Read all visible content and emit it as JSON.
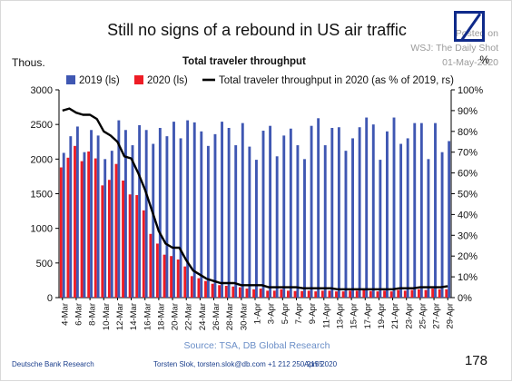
{
  "header": {
    "title": "Still no signs of a rebound in US air traffic",
    "watermark_lines": [
      "Posted on",
      "WSJ: The Daily Shot",
      "01-May-2020",
      "@SoberLook"
    ]
  },
  "footer": {
    "brand": "Deutsche Bank Research",
    "contact": "Torsten Slok, torsten.slok@db.com +1 212 250-2155",
    "date": "April 2020",
    "page": "178"
  },
  "colors": {
    "blue": "#3f57b2",
    "red": "#ee1c25",
    "line": "#000000",
    "source_text": "#6a8ec7"
  },
  "icons": {
    "logo": "deutsche-bank-logo-icon"
  },
  "chart_data": {
    "type": "bar",
    "title": "Total traveler throughput",
    "ylabel": "Thous.",
    "y2label": "%",
    "source": "Source:  TSA, DB Global Research",
    "ylim": [
      0,
      3000
    ],
    "y2lim": [
      0,
      100
    ],
    "yticks": [
      "0",
      "500",
      "1000",
      "1500",
      "2000",
      "2500",
      "3000"
    ],
    "y2ticks": [
      "0%",
      "10%",
      "20%",
      "30%",
      "40%",
      "50%",
      "60%",
      "70%",
      "80%",
      "90%",
      "100%"
    ],
    "legend_position": "top",
    "categories": [
      "4-Mar",
      "5-Mar",
      "6-Mar",
      "7-Mar",
      "8-Mar",
      "9-Mar",
      "10-Mar",
      "11-Mar",
      "12-Mar",
      "13-Mar",
      "14-Mar",
      "15-Mar",
      "16-Mar",
      "17-Mar",
      "18-Mar",
      "19-Mar",
      "20-Mar",
      "21-Mar",
      "22-Mar",
      "23-Mar",
      "24-Mar",
      "25-Mar",
      "26-Mar",
      "27-Mar",
      "28-Mar",
      "29-Mar",
      "30-Mar",
      "31-Mar",
      "1-Apr",
      "2-Apr",
      "3-Apr",
      "4-Apr",
      "5-Apr",
      "6-Apr",
      "7-Apr",
      "8-Apr",
      "9-Apr",
      "10-Apr",
      "11-Apr",
      "12-Apr",
      "13-Apr",
      "14-Apr",
      "15-Apr",
      "16-Apr",
      "17-Apr",
      "18-Apr",
      "19-Apr",
      "20-Apr",
      "21-Apr",
      "22-Apr",
      "23-Apr",
      "24-Apr",
      "25-Apr",
      "26-Apr",
      "27-Apr",
      "28-Apr",
      "29-Apr"
    ],
    "xtick_labels": [
      "4-Mar",
      "6-Mar",
      "8-Mar",
      "10-Mar",
      "12-Mar",
      "14-Mar",
      "16-Mar",
      "18-Mar",
      "20-Mar",
      "22-Mar",
      "24-Mar",
      "26-Mar",
      "28-Mar",
      "30-Mar",
      "1-Apr",
      "3-Apr",
      "5-Apr",
      "7-Apr",
      "9-Apr",
      "11-Apr",
      "13-Apr",
      "15-Apr",
      "17-Apr",
      "19-Apr",
      "21-Apr",
      "23-Apr",
      "25-Apr",
      "27-Apr",
      "29-Apr"
    ],
    "series": [
      {
        "name": "2019 (ls)",
        "kind": "bar",
        "axis": "left",
        "values": [
          2090,
          2330,
          2470,
          2100,
          2420,
          2340,
          2000,
          2120,
          2560,
          2420,
          2200,
          2490,
          2420,
          2220,
          2450,
          2330,
          2540,
          2300,
          2560,
          2530,
          2400,
          2190,
          2360,
          2540,
          2450,
          2200,
          2520,
          2180,
          1990,
          2410,
          2480,
          2040,
          2340,
          2440,
          2200,
          2000,
          2480,
          2590,
          2200,
          2450,
          2460,
          2120,
          2300,
          2460,
          2600,
          2500,
          1990,
          2400,
          2600,
          2220,
          2300,
          2520,
          2520,
          2000,
          2520,
          2100,
          2260
        ]
      },
      {
        "name": "2020 (ls)",
        "kind": "bar",
        "axis": "left",
        "values": [
          1880,
          2020,
          2190,
          1970,
          2110,
          2010,
          1620,
          1700,
          1930,
          1690,
          1490,
          1480,
          1260,
          920,
          780,
          620,
          600,
          550,
          450,
          310,
          280,
          240,
          200,
          180,
          170,
          160,
          150,
          130,
          120,
          130,
          100,
          100,
          120,
          100,
          95,
          95,
          100,
          90,
          100,
          100,
          90,
          90,
          100,
          100,
          110,
          95,
          90,
          100,
          90,
          110,
          100,
          110,
          120,
          110,
          130,
          120,
          120
        ]
      },
      {
        "name": "Total traveler throughput in 2020 (as % of 2019, rs)",
        "kind": "line",
        "axis": "right",
        "values": [
          90,
          91,
          89,
          88,
          88,
          86,
          80,
          78,
          75,
          68,
          67,
          60,
          52,
          42,
          32,
          26,
          24,
          24,
          18,
          13,
          11,
          9,
          8,
          7,
          7,
          7,
          6,
          6,
          6,
          6,
          5,
          5,
          5,
          5,
          5,
          4.5,
          4.5,
          4.5,
          4.5,
          4.5,
          4,
          4,
          4,
          4,
          4,
          4,
          4,
          4,
          4,
          4.5,
          4.5,
          4.5,
          5,
          5,
          5,
          5,
          5.5
        ]
      }
    ]
  }
}
